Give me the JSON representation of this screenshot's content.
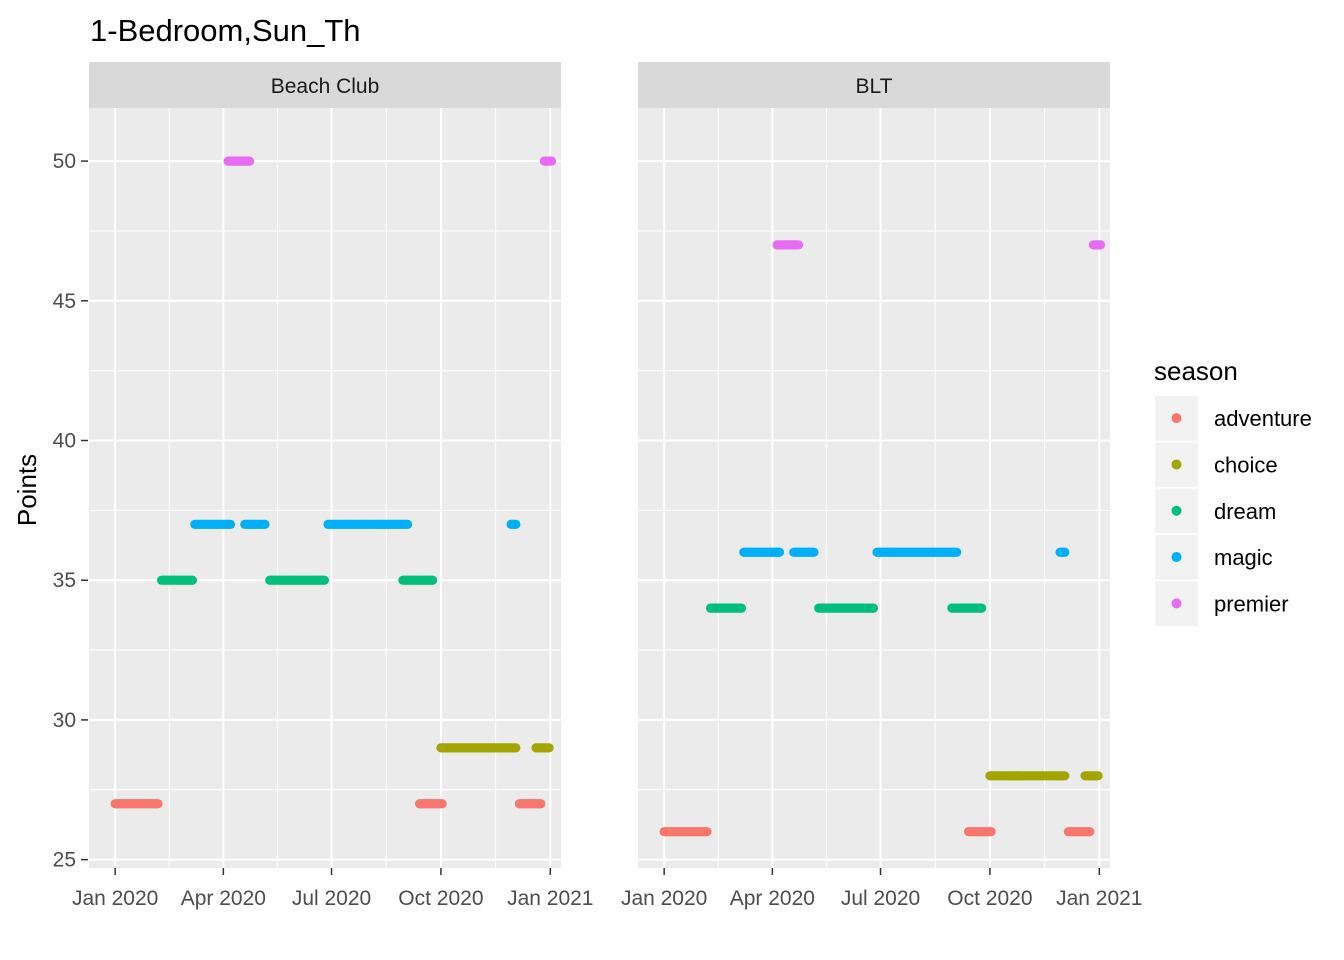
{
  "chart_data": {
    "type": "scatter",
    "title": "1-Bedroom,Sun_Th",
    "xlabel": "",
    "ylabel": "Points",
    "ylim": [
      24.7,
      51.9
    ],
    "xlim": [
      "2019-12-10",
      "2021-01-10"
    ],
    "y_ticks": [
      25,
      30,
      35,
      40,
      45,
      50
    ],
    "x_ticks": [
      {
        "date": "2020-01-01",
        "label": "Jan 2020"
      },
      {
        "date": "2020-04-01",
        "label": "Apr 2020"
      },
      {
        "date": "2020-07-01",
        "label": "Jul 2020"
      },
      {
        "date": "2020-10-01",
        "label": "Oct 2020"
      },
      {
        "date": "2021-01-01",
        "label": "Jan 2021"
      }
    ],
    "grid": true,
    "legend": {
      "title": "season",
      "position": "right",
      "entries": [
        {
          "name": "adventure",
          "color": "#F8766D"
        },
        {
          "name": "choice",
          "color": "#A3A500"
        },
        {
          "name": "dream",
          "color": "#00BF7D"
        },
        {
          "name": "magic",
          "color": "#00B0F6"
        },
        {
          "name": "premier",
          "color": "#E76BF3"
        }
      ]
    },
    "panels": [
      {
        "label": "Beach Club",
        "segments": [
          {
            "season": "adventure",
            "start": "2020-01-01",
            "end": "2020-02-06",
            "points": 27
          },
          {
            "season": "dream",
            "start": "2020-02-09",
            "end": "2020-03-06",
            "points": 35
          },
          {
            "season": "magic",
            "start": "2020-03-08",
            "end": "2020-04-07",
            "points": 37
          },
          {
            "season": "premier",
            "start": "2020-04-05",
            "end": "2020-04-23",
            "points": 50
          },
          {
            "season": "magic",
            "start": "2020-04-19",
            "end": "2020-05-06",
            "points": 37
          },
          {
            "season": "dream",
            "start": "2020-05-10",
            "end": "2020-06-25",
            "points": 35
          },
          {
            "season": "magic",
            "start": "2020-06-28",
            "end": "2020-09-03",
            "points": 37
          },
          {
            "season": "dream",
            "start": "2020-08-30",
            "end": "2020-09-24",
            "points": 35
          },
          {
            "season": "adventure",
            "start": "2020-09-13",
            "end": "2020-10-02",
            "points": 27
          },
          {
            "season": "choice",
            "start": "2020-10-01",
            "end": "2020-12-03",
            "points": 29
          },
          {
            "season": "magic",
            "start": "2020-11-29",
            "end": "2020-12-03",
            "points": 37
          },
          {
            "season": "adventure",
            "start": "2020-12-06",
            "end": "2020-12-24",
            "points": 27
          },
          {
            "season": "choice",
            "start": "2020-12-20",
            "end": "2020-12-31",
            "points": 29
          },
          {
            "season": "premier",
            "start": "2020-12-27",
            "end": "2021-01-02",
            "points": 50
          }
        ]
      },
      {
        "label": "BLT",
        "segments": [
          {
            "season": "adventure",
            "start": "2020-01-01",
            "end": "2020-02-06",
            "points": 26
          },
          {
            "season": "dream",
            "start": "2020-02-09",
            "end": "2020-03-06",
            "points": 34
          },
          {
            "season": "magic",
            "start": "2020-03-08",
            "end": "2020-04-07",
            "points": 36
          },
          {
            "season": "premier",
            "start": "2020-04-05",
            "end": "2020-04-23",
            "points": 47
          },
          {
            "season": "magic",
            "start": "2020-04-19",
            "end": "2020-05-06",
            "points": 36
          },
          {
            "season": "dream",
            "start": "2020-05-10",
            "end": "2020-06-25",
            "points": 34
          },
          {
            "season": "magic",
            "start": "2020-06-28",
            "end": "2020-09-03",
            "points": 36
          },
          {
            "season": "dream",
            "start": "2020-08-30",
            "end": "2020-09-24",
            "points": 34
          },
          {
            "season": "adventure",
            "start": "2020-09-13",
            "end": "2020-10-02",
            "points": 26
          },
          {
            "season": "choice",
            "start": "2020-10-01",
            "end": "2020-12-03",
            "points": 28
          },
          {
            "season": "magic",
            "start": "2020-11-29",
            "end": "2020-12-03",
            "points": 36
          },
          {
            "season": "adventure",
            "start": "2020-12-06",
            "end": "2020-12-24",
            "points": 26
          },
          {
            "season": "choice",
            "start": "2020-12-20",
            "end": "2020-12-31",
            "points": 28
          },
          {
            "season": "premier",
            "start": "2020-12-27",
            "end": "2021-01-02",
            "points": 47
          }
        ]
      }
    ]
  }
}
